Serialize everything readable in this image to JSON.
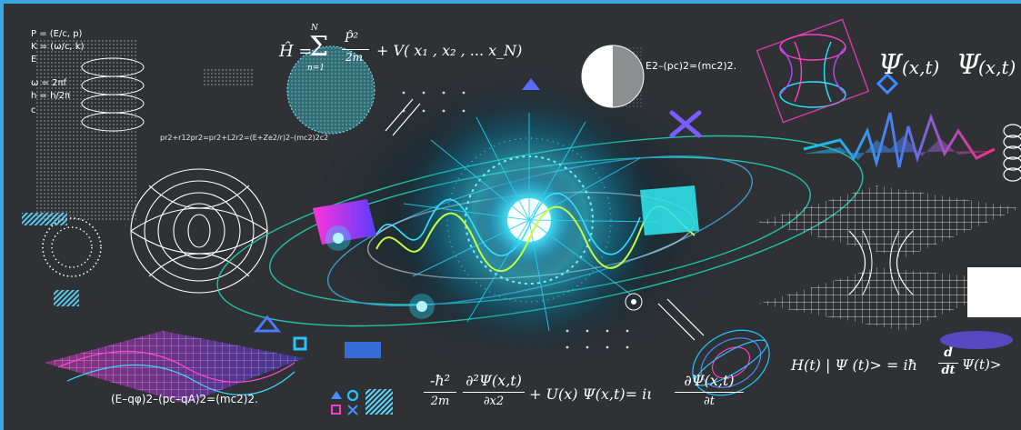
{
  "formulas": {
    "relations": [
      "P = (E/c, p)",
      "K = (ω/c, k)",
      "E",
      "ω = 2πf",
      "h = h/2π",
      "c"
    ],
    "hamiltonian_lhs": "Ĥ =",
    "hamiltonian_sum_top": "N",
    "hamiltonian_sum_bottom": "n=1",
    "hamiltonian_p": "P̂²",
    "hamiltonian_m": "2m",
    "hamiltonian_rhs": "+ V( x₁ , x₂ , ... x_N)",
    "energy_relation": "E2–(pc)2=(mc2)2.",
    "wavefunction_psi1": "Ψ",
    "wavefunction_args": "(x,t)",
    "wavefunction_psi2": "Ψ",
    "wavefunction_args2": "(x,t)",
    "small_eq": "pr2+r12pr2=pr2+L2r2=(E+Ze2/r)2–(mc2)2c2",
    "em_relation": "(E–qφ)2–(pc–qA)2=(mc2)2.",
    "schrodinger_num1": "-ħ²",
    "schrodinger_den1": "2m",
    "schrodinger_num2": "∂²Ψ(x,t)",
    "schrodinger_den2": "∂x2",
    "schrodinger_mid": "+ U(x) Ψ(x,t)= iι",
    "schrodinger_num3": "∂Ψ(x,t)",
    "schrodinger_den3": "∂t",
    "timeevol_lhs": "H(t) | Ψ (t)> = iħ",
    "timeevol_d": "d",
    "timeevol_dt": "dt",
    "timeevol_rhs": "Ψ(t)>"
  },
  "colors": {
    "accent": "#39a7e0",
    "cyan": "#22e0f0",
    "magenta": "#e82ad0",
    "teal": "#18c8b0",
    "background": "#303135"
  },
  "icons": [
    "triangle-icon",
    "circle-icon",
    "square-icon",
    "cross-icon",
    "stripes-icon"
  ]
}
